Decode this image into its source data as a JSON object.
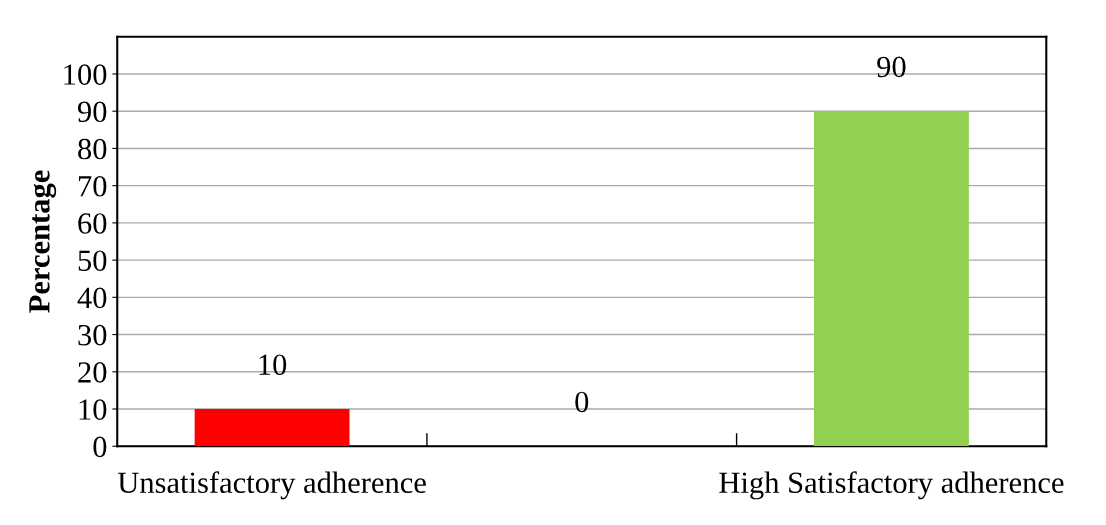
{
  "chart_data": {
    "type": "bar",
    "ylabel": "Percentage",
    "categories": [
      "Unsatisfactory adherence",
      null,
      "High Satisfactory adherence"
    ],
    "values": [
      10,
      0,
      90
    ],
    "colors": [
      "#ff0000",
      "#ffc000",
      "#92d050"
    ],
    "ylim": [
      0,
      110
    ],
    "yticks": [
      0,
      10,
      20,
      30,
      40,
      50,
      60,
      70,
      80,
      90,
      100
    ],
    "grid": "y",
    "data_labels": true
  }
}
